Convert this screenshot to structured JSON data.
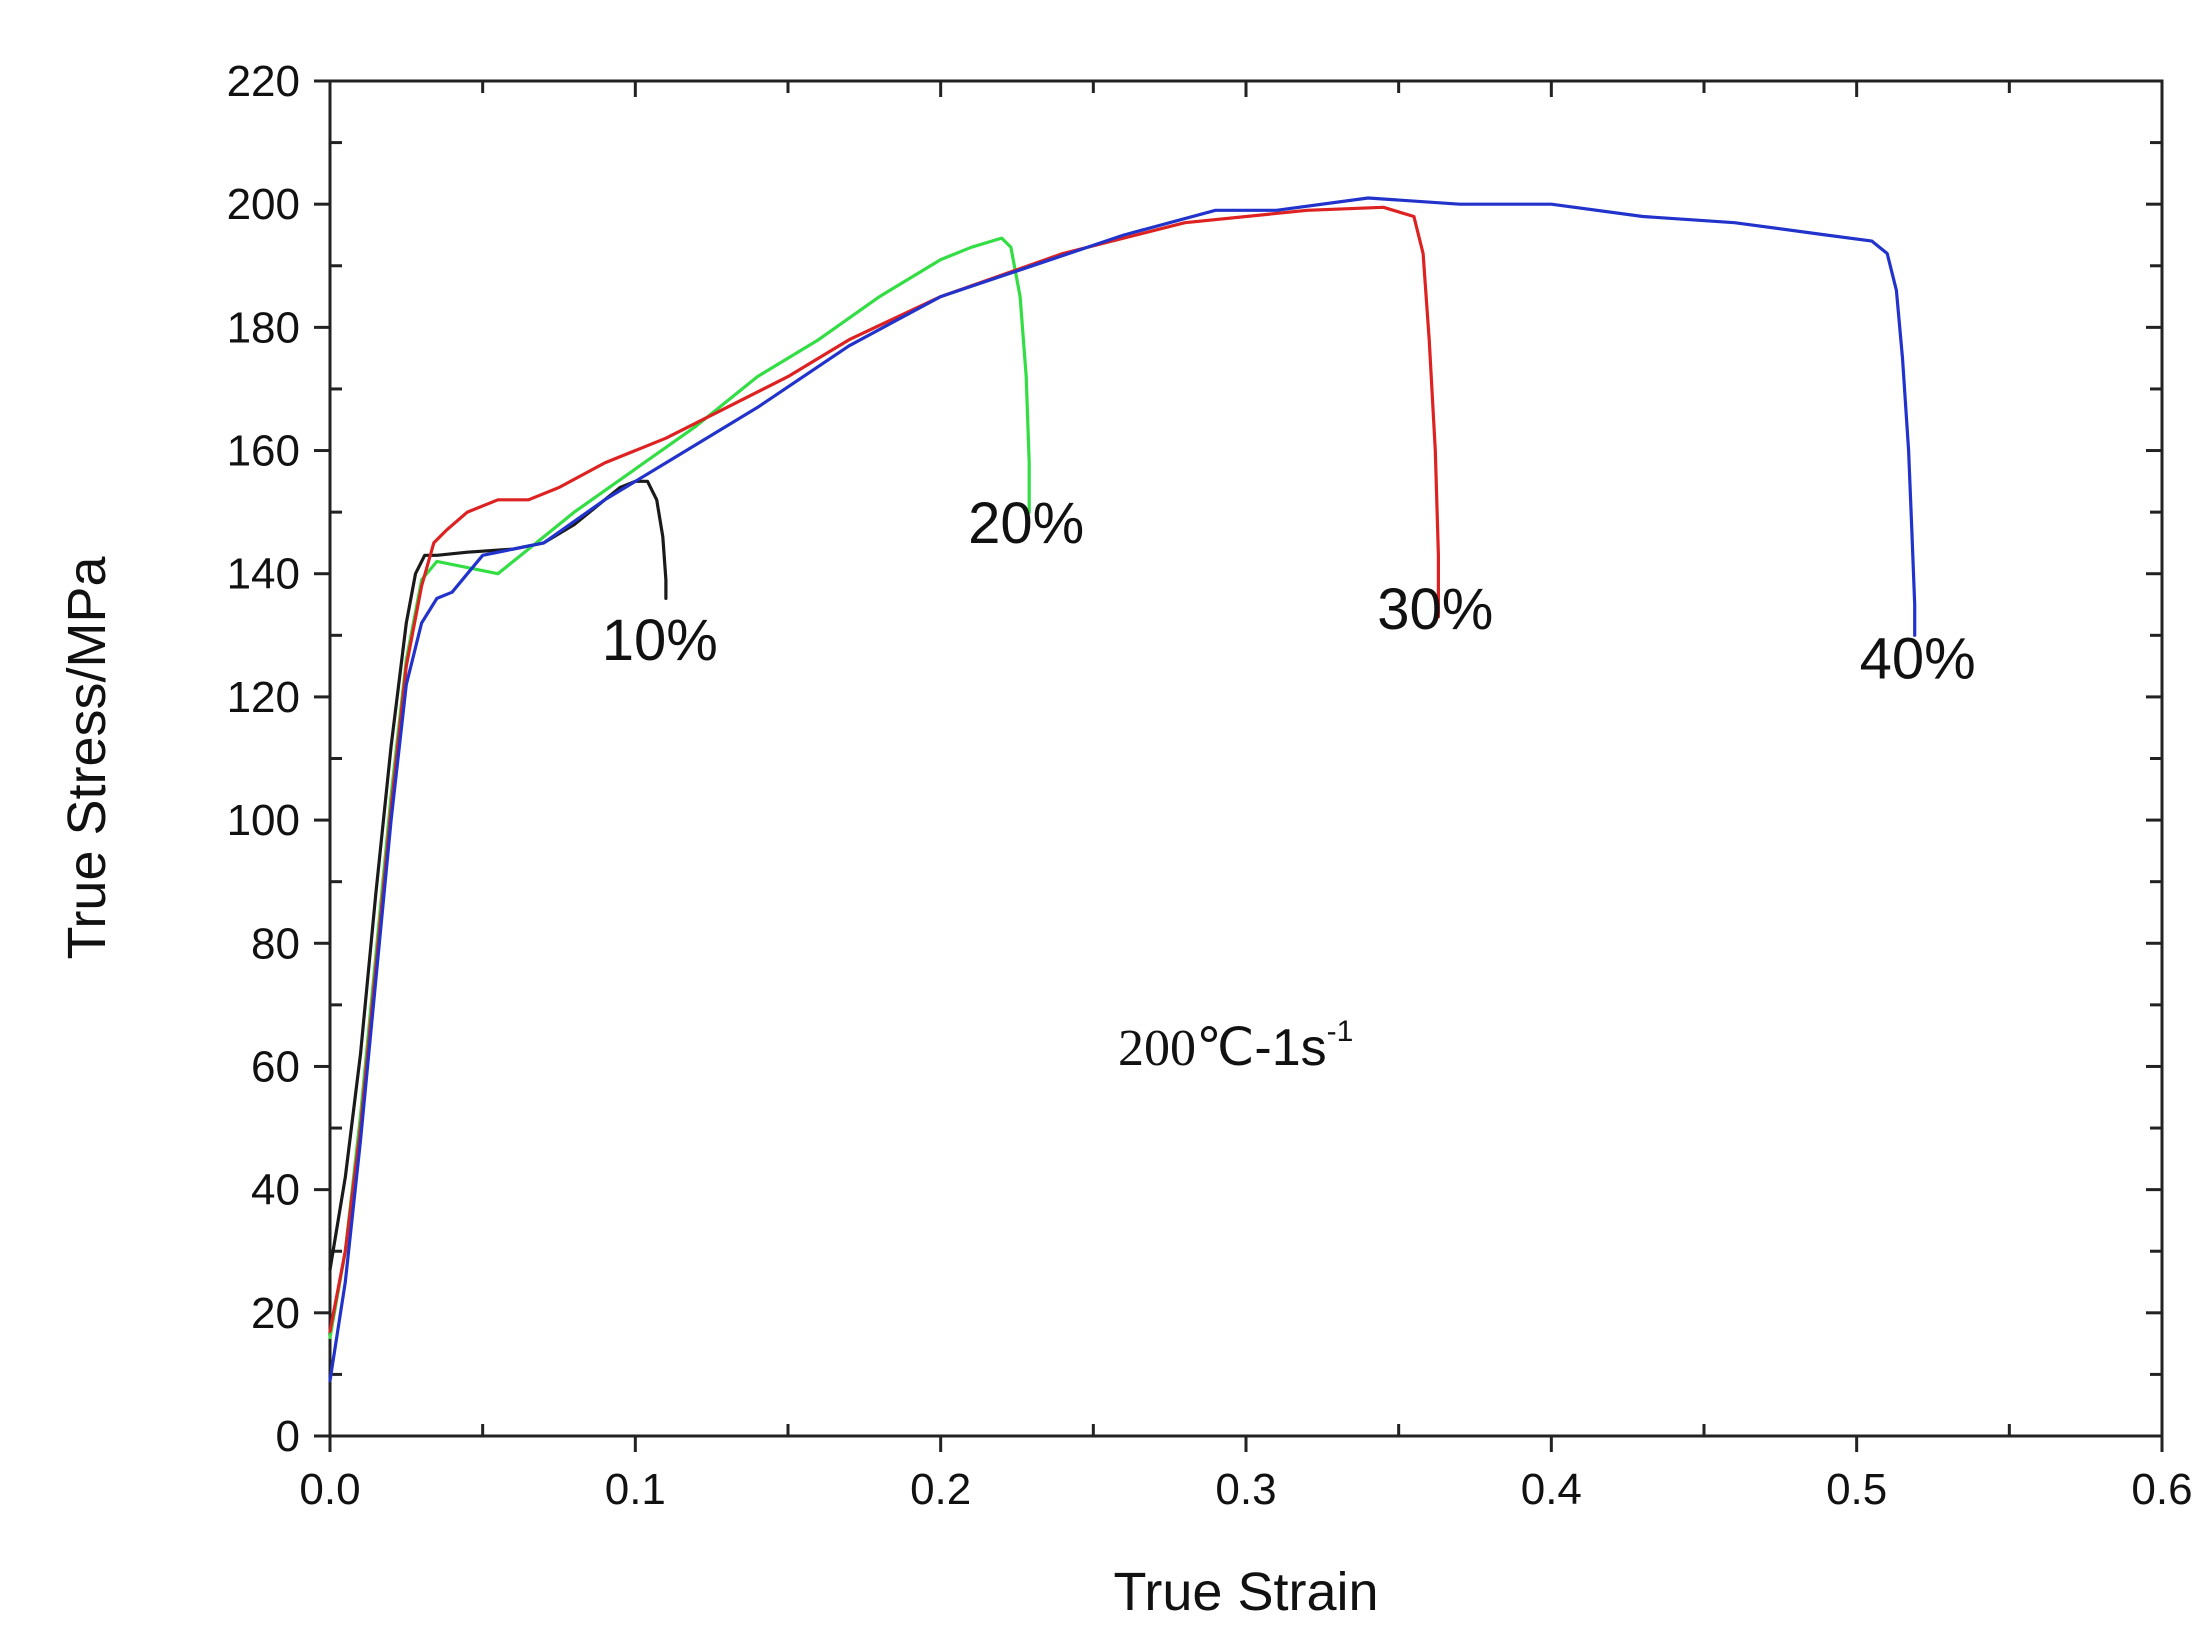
{
  "chart_data": {
    "type": "line",
    "title": "",
    "xlabel": "True Strain",
    "ylabel": "True Stress/MPa",
    "xlim": [
      0.0,
      0.6
    ],
    "ylim": [
      0,
      220
    ],
    "x_ticks": [
      "0.0",
      "0.1",
      "0.2",
      "0.3",
      "0.4",
      "0.5",
      "0.6"
    ],
    "y_ticks": [
      "0",
      "20",
      "40",
      "60",
      "80",
      "100",
      "120",
      "140",
      "160",
      "180",
      "200",
      "220"
    ],
    "grid": false,
    "annotation": {
      "temp": "200℃",
      "rate": "-1s",
      "exp": "-1"
    },
    "series": [
      {
        "name": "10%",
        "label": "10%",
        "color": "#1a1a1a",
        "label_pos": [
          0.108,
          126
        ],
        "x": [
          0.0,
          0.005,
          0.01,
          0.015,
          0.02,
          0.025,
          0.028,
          0.031,
          0.035,
          0.045,
          0.06,
          0.07,
          0.08,
          0.09,
          0.095,
          0.1,
          0.104,
          0.107,
          0.109,
          0.11,
          0.11
        ],
        "y": [
          27,
          42,
          62,
          88,
          112,
          132,
          140,
          143,
          143,
          143.5,
          144,
          145,
          148,
          152,
          154,
          155,
          155,
          152,
          146,
          139,
          136
        ]
      },
      {
        "name": "20%",
        "label": "20%",
        "color": "#33dd44",
        "label_pos": [
          0.228,
          145
        ],
        "x": [
          0.0,
          0.005,
          0.01,
          0.015,
          0.02,
          0.025,
          0.03,
          0.035,
          0.045,
          0.055,
          0.065,
          0.08,
          0.1,
          0.12,
          0.14,
          0.16,
          0.18,
          0.2,
          0.21,
          0.22,
          0.223,
          0.226,
          0.228,
          0.229,
          0.229
        ],
        "y": [
          16,
          30,
          52,
          78,
          104,
          126,
          139,
          142,
          141,
          140,
          144,
          150,
          157,
          164,
          172,
          178,
          185,
          191,
          193,
          194.5,
          193,
          185,
          172,
          158,
          150
        ]
      },
      {
        "name": "30%",
        "label": "30%",
        "color": "#dd2222",
        "label_pos": [
          0.362,
          131
        ],
        "x": [
          0.0,
          0.005,
          0.01,
          0.015,
          0.02,
          0.025,
          0.03,
          0.034,
          0.038,
          0.045,
          0.055,
          0.065,
          0.075,
          0.09,
          0.11,
          0.13,
          0.15,
          0.17,
          0.2,
          0.24,
          0.28,
          0.32,
          0.345,
          0.355,
          0.358,
          0.36,
          0.362,
          0.363,
          0.363
        ],
        "y": [
          17,
          30,
          50,
          76,
          102,
          125,
          138,
          145,
          147,
          150,
          152,
          152,
          154,
          158,
          162,
          167,
          172,
          178,
          185,
          192,
          197,
          199,
          199.5,
          198,
          192,
          178,
          160,
          143,
          133
        ]
      },
      {
        "name": "40%",
        "label": "40%",
        "color": "#2233cc",
        "label_pos": [
          0.52,
          123
        ],
        "x": [
          0.0,
          0.005,
          0.01,
          0.015,
          0.02,
          0.025,
          0.03,
          0.035,
          0.04,
          0.045,
          0.05,
          0.06,
          0.07,
          0.09,
          0.11,
          0.14,
          0.17,
          0.2,
          0.23,
          0.26,
          0.29,
          0.31,
          0.34,
          0.37,
          0.4,
          0.43,
          0.46,
          0.49,
          0.505,
          0.51,
          0.513,
          0.515,
          0.517,
          0.518,
          0.519,
          0.519
        ],
        "y": [
          9,
          25,
          48,
          74,
          100,
          122,
          132,
          136,
          137,
          140,
          143,
          144,
          145,
          152,
          158,
          167,
          177,
          185,
          190,
          195,
          199,
          199,
          201,
          200,
          200,
          198,
          197,
          195,
          194,
          192,
          186,
          175,
          160,
          148,
          135,
          130
        ]
      }
    ]
  }
}
